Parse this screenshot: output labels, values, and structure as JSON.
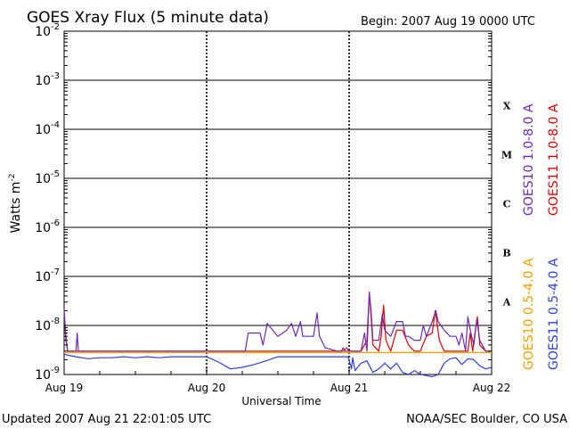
{
  "header": {
    "title": "GOES Xray Flux (5 minute data)",
    "begin": "Begin:  2007 Aug 19 0000 UTC"
  },
  "footer": {
    "updated": "Updated 2007 Aug 21 22:01:05 UTC",
    "source": "NOAA/SEC Boulder, CO USA"
  },
  "chart_data": {
    "type": "line",
    "title": "GOES Xray Flux (5 minute data)",
    "xlabel": "Universal Time",
    "ylabel_base": "Watts m",
    "ylabel_exp": "-2",
    "yscale": "log",
    "ylim": [
      1e-09,
      0.01
    ],
    "xlim": [
      0,
      72
    ],
    "x_unit": "hours since 2007 Aug 19 0000 UTC",
    "x_ticks": [
      {
        "value": 0,
        "label": "Aug 19"
      },
      {
        "value": 24,
        "label": "Aug 20"
      },
      {
        "value": 48,
        "label": "Aug 21"
      },
      {
        "value": 72,
        "label": "Aug 22"
      }
    ],
    "y_ticks": [
      {
        "value": 0.01,
        "base": "10",
        "exp": "-2"
      },
      {
        "value": 0.001,
        "base": "10",
        "exp": "-3"
      },
      {
        "value": 0.0001,
        "base": "10",
        "exp": "-4"
      },
      {
        "value": 1e-05,
        "base": "10",
        "exp": "-5"
      },
      {
        "value": 1e-06,
        "base": "10",
        "exp": "-6"
      },
      {
        "value": 1e-07,
        "base": "10",
        "exp": "-7"
      },
      {
        "value": 1e-08,
        "base": "10",
        "exp": "-8"
      },
      {
        "value": 1e-09,
        "base": "10",
        "exp": "-9"
      }
    ],
    "flare_classes": [
      {
        "label": "X",
        "low": 0.0001,
        "high": 0.001
      },
      {
        "label": "M",
        "low": 1e-05,
        "high": 0.0001
      },
      {
        "label": "C",
        "low": 1e-06,
        "high": 1e-05
      },
      {
        "label": "B",
        "low": 1e-07,
        "high": 1e-06
      },
      {
        "label": "A",
        "low": 1e-08,
        "high": 1e-07
      }
    ],
    "grid": true,
    "legend_placement": "right",
    "series": [
      {
        "name": "GOES11 0.5-4.0 A",
        "color": "#2f3fd8",
        "x": [
          0,
          0.5,
          2,
          4,
          6,
          8,
          10,
          12,
          14,
          16,
          18,
          20,
          22,
          23.5,
          24,
          26,
          28,
          30,
          32,
          34,
          36,
          38,
          40,
          42,
          44,
          46,
          47.8,
          48.4,
          48.6,
          49,
          50,
          51,
          52,
          53,
          54,
          55,
          56,
          57,
          58,
          59,
          60,
          61,
          62,
          63,
          64,
          65,
          66,
          67,
          68,
          69,
          70,
          71,
          72
        ],
        "values": [
          2.6e-09,
          2.5e-09,
          2.3e-09,
          2.1e-09,
          2.2e-09,
          2.2e-09,
          2.3e-09,
          2.2e-09,
          2.3e-09,
          2.2e-09,
          2.3e-09,
          2.3e-09,
          2.3e-09,
          2.3e-09,
          2.3e-09,
          1.8e-09,
          1.3e-09,
          1.4e-09,
          1.6e-09,
          1.9e-09,
          2.3e-09,
          2.3e-09,
          2.3e-09,
          2.3e-09,
          2.3e-09,
          2.3e-09,
          2.3e-09,
          1.3e-09,
          2.2e-09,
          1.2e-09,
          1.7e-09,
          1.9e-09,
          1.1e-09,
          1.3e-09,
          1.7e-09,
          1.3e-09,
          1.7e-09,
          1.1e-09,
          1e-09,
          1.2e-09,
          1e-09,
          9.5e-10,
          9e-10,
          1e-09,
          1.7e-09,
          2.1e-09,
          2.2e-09,
          1.6e-09,
          2.1e-09,
          2e-09,
          1.5e-09,
          1.3e-09,
          1.4e-09
        ]
      },
      {
        "name": "GOES10 0.5-4.0 A",
        "color": "#f0a000",
        "x": [
          0,
          72
        ],
        "values": [
          2.8e-09,
          2.8e-09
        ]
      },
      {
        "name": "GOES11 1.0-8.0 A",
        "color": "#e00000",
        "x": [
          0,
          0.3,
          0.6,
          1,
          3,
          6,
          10,
          14,
          18,
          22,
          24,
          28,
          32,
          36,
          40,
          44,
          46,
          46.7,
          47,
          47.3,
          48,
          50,
          51,
          51.4,
          51.7,
          52,
          53,
          53.4,
          53.8,
          54.2,
          55,
          56,
          57,
          58,
          59,
          59.6,
          60,
          60.4,
          61,
          62,
          62.5,
          62.8,
          63.2,
          64,
          66,
          68,
          68.4,
          68.8,
          69.2,
          69.6,
          70,
          71,
          72
        ],
        "values": [
          1.8e-08,
          6e-09,
          3e-09,
          3e-09,
          3e-09,
          3e-09,
          3e-09,
          3e-09,
          3e-09,
          3e-09,
          3e-09,
          3e-09,
          3e-09,
          3e-09,
          3e-09,
          3e-09,
          3e-09,
          3e-09,
          3.5e-09,
          3e-09,
          3e-09,
          3e-09,
          5e-09,
          4.8e-08,
          1.5e-08,
          4e-09,
          3e-09,
          6e-09,
          2.6e-08,
          5e-09,
          3e-09,
          8e-09,
          8e-09,
          4e-09,
          3e-09,
          3e-09,
          3e-09,
          4e-09,
          6e-09,
          7e-09,
          2e-08,
          1.1e-08,
          5e-09,
          3e-09,
          3e-09,
          3e-09,
          7e-09,
          3e-09,
          7e-09,
          1.5e-08,
          4e-09,
          3e-09,
          3e-09
        ]
      },
      {
        "name": "GOES10 1.0-8.0 A",
        "color": "#6a2ab4",
        "x": [
          0,
          0.3,
          0.6,
          2,
          2.2,
          2.4,
          6,
          10,
          14,
          18,
          22,
          24,
          28,
          30.5,
          31,
          33,
          33.5,
          34.2,
          36,
          37.5,
          38.3,
          39,
          39.8,
          40.2,
          41,
          42,
          42.6,
          43,
          44,
          46,
          47,
          47.6,
          48,
          50,
          50.6,
          51,
          51.4,
          51.7,
          52,
          53,
          53.6,
          54,
          55,
          56,
          57,
          57.5,
          58,
          59,
          60,
          60.5,
          61,
          62,
          62.6,
          63,
          64,
          65,
          66,
          66.5,
          67,
          67.6,
          68,
          68.5,
          69,
          69.5,
          70,
          71,
          72
        ],
        "values": [
          2.2e-08,
          5e-09,
          3e-09,
          3e-09,
          7e-09,
          3e-09,
          3e-09,
          3e-09,
          3e-09,
          3e-09,
          3e-09,
          3e-09,
          3e-09,
          3e-09,
          7e-09,
          7e-09,
          4e-09,
          1.1e-08,
          6e-09,
          8e-09,
          1.1e-08,
          6e-09,
          1.2e-08,
          6e-09,
          6e-09,
          6e-09,
          1.8e-08,
          6e-09,
          3.5e-09,
          3e-09,
          3e-09,
          3.5e-09,
          3e-09,
          3e-09,
          7e-09,
          3e-09,
          4.5e-08,
          2e-08,
          5e-09,
          5e-09,
          1.7e-08,
          8e-09,
          6e-09,
          1.2e-08,
          1.2e-08,
          6e-09,
          6e-09,
          5e-09,
          5e-09,
          1e-08,
          6e-09,
          1.2e-08,
          2e-08,
          1.2e-08,
          8e-09,
          6e-09,
          6e-09,
          4e-09,
          7e-09,
          3e-09,
          1.5e-08,
          7e-09,
          4e-09,
          1.3e-08,
          5e-09,
          3e-09,
          3e-09
        ]
      }
    ]
  }
}
